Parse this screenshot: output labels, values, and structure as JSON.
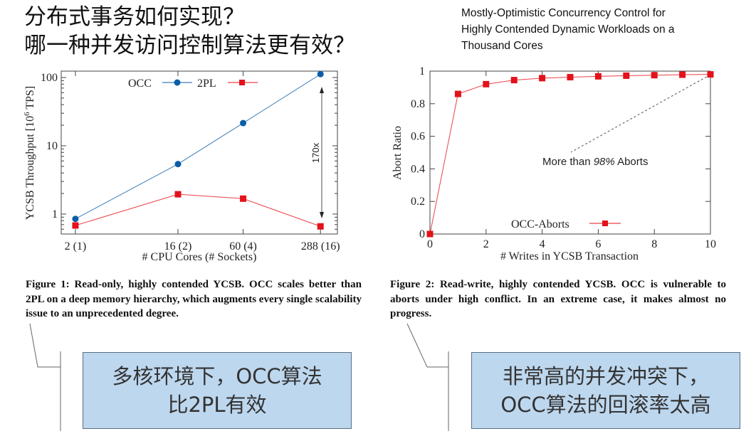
{
  "slide": {
    "title_lines": [
      "分布式事务如何实现？",
      "哪一种并发访问控制算法更有效？"
    ],
    "paper_title_lines": [
      "Mostly-Optimistic Concurrency Control for",
      "Highly Contended Dynamic Workloads on a",
      "Thousand Cores"
    ]
  },
  "captions": {
    "figure1": "Figure 1:  Read-only, highly contended YCSB. OCC scales better than 2PL on a deep memory hierarchy, which augments every single scalability issue to an unprecedented degree.",
    "figure2": "Figure 2:  Read-write, highly contended YCSB. OCC is vulnerable to aborts under high conflict. In an extreme case, it makes almost no progress."
  },
  "callouts": {
    "left_lines": [
      "多核环境下，OCC算法",
      "比2PL有效"
    ],
    "right_lines": [
      "非常高的并发冲突下，",
      "OCC算法的回滚率太高"
    ],
    "fill_color": "#bdd7ee"
  },
  "chart_data": [
    {
      "type": "line",
      "x_scale": "log2",
      "y_scale": "log10",
      "x": [
        2,
        16,
        60,
        288
      ],
      "x_tick_labels": [
        "2 (1)",
        "16 (2)",
        "60 (4)",
        "288 (16)"
      ],
      "xlabel": "# CPU Cores (# Sockets)",
      "ylabel_parts": [
        "YCSB Throughput [10",
        "6",
        " TPS]"
      ],
      "y_ticks": [
        1,
        10,
        100
      ],
      "y_tick_labels": [
        "1",
        "10",
        "100"
      ],
      "xlim": [
        1.5,
        406
      ],
      "ylim": [
        0.51,
        124
      ],
      "legend_position": "top",
      "series": [
        {
          "name": "OCC",
          "values": [
            0.85,
            5.4,
            21.5,
            112
          ],
          "color": "#0b5ea8",
          "marker": "circle"
        },
        {
          "name": "2PL",
          "values": [
            0.68,
            1.95,
            1.68,
            0.66
          ],
          "color": "#e3121b",
          "marker": "square"
        }
      ],
      "annotation": {
        "text": "170x",
        "x": 288,
        "from": 0.66,
        "to": 112
      }
    },
    {
      "type": "line",
      "x": [
        0,
        1,
        2,
        3,
        4,
        5,
        6,
        7,
        8,
        9,
        10
      ],
      "x_ticks": [
        0,
        2,
        4,
        6,
        8,
        10
      ],
      "x_tick_labels": [
        "0",
        "2",
        "4",
        "6",
        "8",
        "10"
      ],
      "y_ticks": [
        0,
        0.2,
        0.4,
        0.6,
        0.8,
        1
      ],
      "y_tick_labels": [
        "0",
        "0.2",
        "0.4",
        "0.6",
        "0.8",
        "1"
      ],
      "xlabel": "# Writes in YCSB Transaction",
      "ylabel": "Abort Ratio",
      "xlim": [
        0,
        10
      ],
      "ylim": [
        0,
        1
      ],
      "legend_position": "bottom-center",
      "series": [
        {
          "name": "OCC-Aborts",
          "values": [
            0,
            0.86,
            0.92,
            0.945,
            0.957,
            0.963,
            0.968,
            0.972,
            0.975,
            0.978,
            0.98
          ],
          "color": "#e3121b",
          "marker": "square"
        }
      ],
      "annotation": {
        "text_before": "More than ",
        "text_emph": "98%",
        "text_after": " Aborts",
        "x": 10,
        "y": 0.98
      }
    }
  ]
}
